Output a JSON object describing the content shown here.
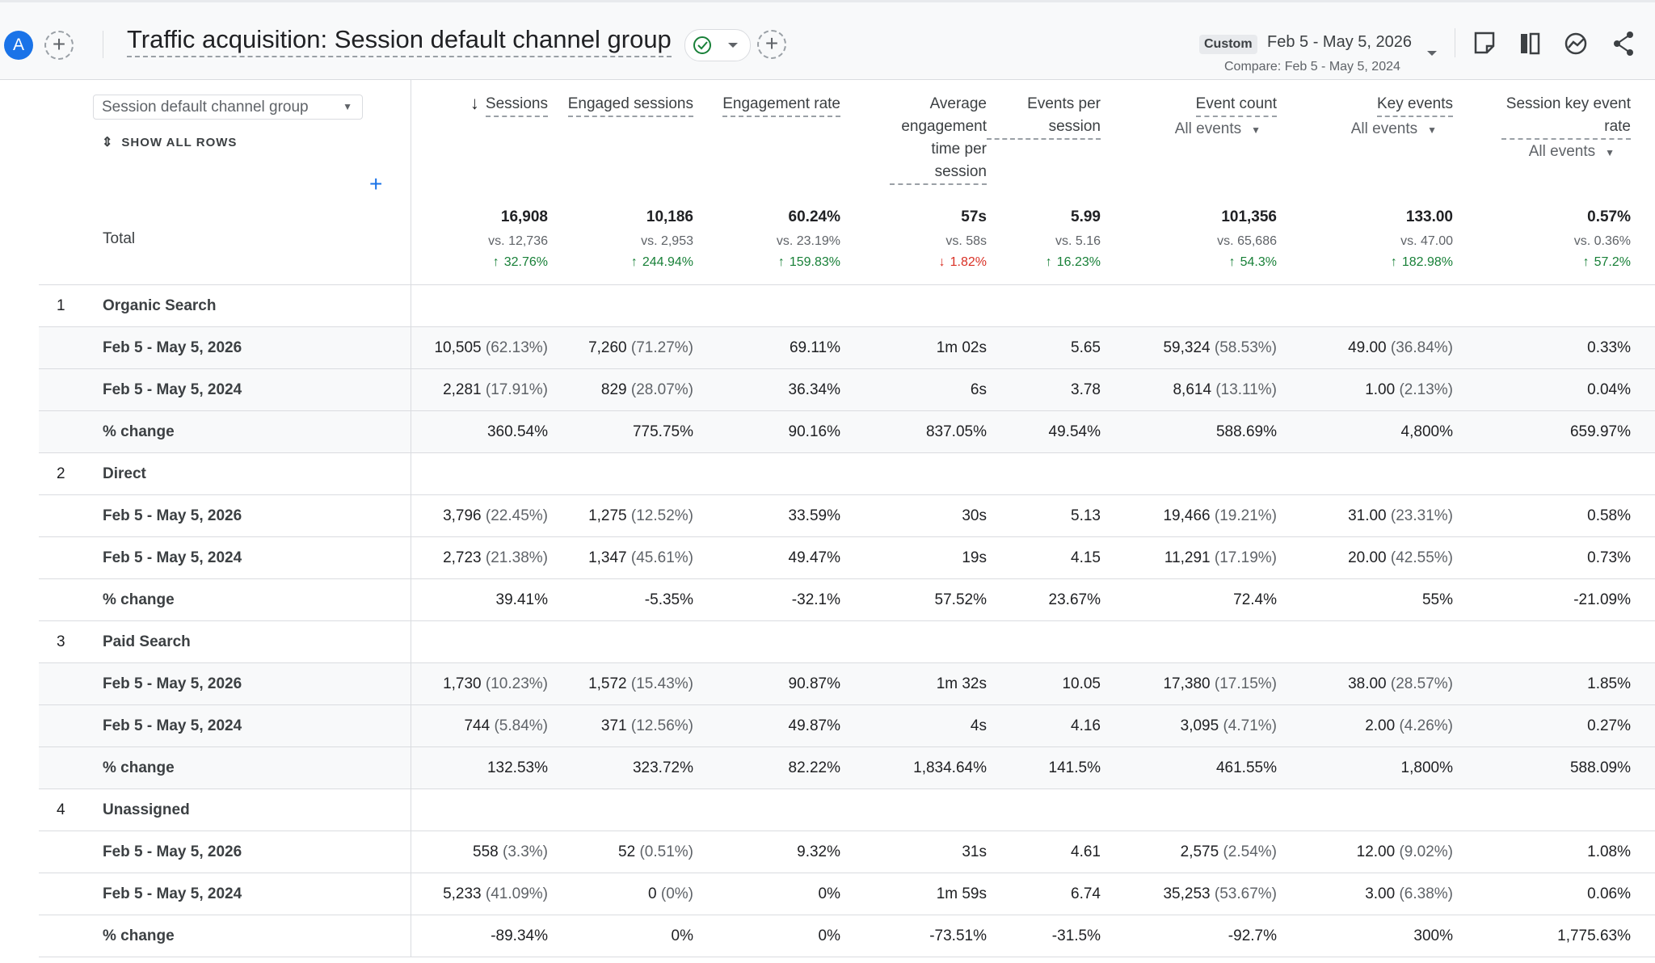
{
  "header": {
    "avatar": "A",
    "title": "Traffic acquisition: Session default channel group",
    "date_badge": "Custom",
    "date_range": "Feb 5 - May 5, 2026",
    "compare": "Compare: Feb 5 - May 5, 2024"
  },
  "dimension": {
    "selector": "Session default channel group",
    "show_all": "SHOW ALL ROWS"
  },
  "columns": [
    {
      "label": "Sessions",
      "sorted": true
    },
    {
      "label": "Engaged sessions"
    },
    {
      "label": "Engagement rate"
    },
    {
      "label": "Average engagement time per session"
    },
    {
      "label": "Events per session"
    },
    {
      "label": "Event count",
      "filter": "All events"
    },
    {
      "label": "Key events",
      "filter": "All events"
    },
    {
      "label": "Session key event rate",
      "filter": "All events"
    }
  ],
  "totals": {
    "label": "Total",
    "cells": [
      {
        "value": "16,908",
        "compare": "vs. 12,736",
        "change": "32.76%",
        "direction": "up"
      },
      {
        "value": "10,186",
        "compare": "vs. 2,953",
        "change": "244.94%",
        "direction": "up"
      },
      {
        "value": "60.24%",
        "compare": "vs. 23.19%",
        "change": "159.83%",
        "direction": "up"
      },
      {
        "value": "57s",
        "compare": "vs. 58s",
        "change": "1.82%",
        "direction": "down"
      },
      {
        "value": "5.99",
        "compare": "vs. 5.16",
        "change": "16.23%",
        "direction": "up"
      },
      {
        "value": "101,356",
        "compare": "vs. 65,686",
        "change": "54.3%",
        "direction": "up"
      },
      {
        "value": "133.00",
        "compare": "vs. 47.00",
        "change": "182.98%",
        "direction": "up"
      },
      {
        "value": "0.57%",
        "compare": "vs. 0.36%",
        "change": "57.2%",
        "direction": "up"
      }
    ]
  },
  "groups": [
    {
      "index": "1",
      "name": "Organic Search",
      "rows": [
        {
          "label": "Feb 5 - May 5, 2026",
          "cells": [
            {
              "value": "10,505",
              "share": "(62.13%)"
            },
            {
              "value": "7,260",
              "share": "(71.27%)"
            },
            "69.11%",
            "1m 02s",
            "5.65",
            {
              "value": "59,324",
              "share": "(58.53%)"
            },
            {
              "value": "49.00",
              "share": "(36.84%)"
            },
            "0.33%"
          ]
        },
        {
          "label": "Feb 5 - May 5, 2024",
          "cells": [
            {
              "value": "2,281",
              "share": "(17.91%)"
            },
            {
              "value": "829",
              "share": "(28.07%)"
            },
            "36.34%",
            "6s",
            "3.78",
            {
              "value": "8,614",
              "share": "(13.11%)"
            },
            {
              "value": "1.00",
              "share": "(2.13%)"
            },
            "0.04%"
          ]
        },
        {
          "label": "% change",
          "cells": [
            "360.54%",
            "775.75%",
            "90.16%",
            "837.05%",
            "49.54%",
            "588.69%",
            "4,800%",
            "659.97%"
          ]
        }
      ]
    },
    {
      "index": "2",
      "name": "Direct",
      "rows": [
        {
          "label": "Feb 5 - May 5, 2026",
          "cells": [
            {
              "value": "3,796",
              "share": "(22.45%)"
            },
            {
              "value": "1,275",
              "share": "(12.52%)"
            },
            "33.59%",
            "30s",
            "5.13",
            {
              "value": "19,466",
              "share": "(19.21%)"
            },
            {
              "value": "31.00",
              "share": "(23.31%)"
            },
            "0.58%"
          ]
        },
        {
          "label": "Feb 5 - May 5, 2024",
          "cells": [
            {
              "value": "2,723",
              "share": "(21.38%)"
            },
            {
              "value": "1,347",
              "share": "(45.61%)"
            },
            "49.47%",
            "19s",
            "4.15",
            {
              "value": "11,291",
              "share": "(17.19%)"
            },
            {
              "value": "20.00",
              "share": "(42.55%)"
            },
            "0.73%"
          ]
        },
        {
          "label": "% change",
          "cells": [
            "39.41%",
            "-5.35%",
            "-32.1%",
            "57.52%",
            "23.67%",
            "72.4%",
            "55%",
            "-21.09%"
          ]
        }
      ]
    },
    {
      "index": "3",
      "name": "Paid Search",
      "rows": [
        {
          "label": "Feb 5 - May 5, 2026",
          "cells": [
            {
              "value": "1,730",
              "share": "(10.23%)"
            },
            {
              "value": "1,572",
              "share": "(15.43%)"
            },
            "90.87%",
            "1m 32s",
            "10.05",
            {
              "value": "17,380",
              "share": "(17.15%)"
            },
            {
              "value": "38.00",
              "share": "(28.57%)"
            },
            "1.85%"
          ]
        },
        {
          "label": "Feb 5 - May 5, 2024",
          "cells": [
            {
              "value": "744",
              "share": "(5.84%)"
            },
            {
              "value": "371",
              "share": "(12.56%)"
            },
            "49.87%",
            "4s",
            "4.16",
            {
              "value": "3,095",
              "share": "(4.71%)"
            },
            {
              "value": "2.00",
              "share": "(4.26%)"
            },
            "0.27%"
          ]
        },
        {
          "label": "% change",
          "cells": [
            "132.53%",
            "323.72%",
            "82.22%",
            "1,834.64%",
            "141.5%",
            "461.55%",
            "1,800%",
            "588.09%"
          ]
        }
      ]
    },
    {
      "index": "4",
      "name": "Unassigned",
      "rows": [
        {
          "label": "Feb 5 - May 5, 2026",
          "cells": [
            {
              "value": "558",
              "share": "(3.3%)"
            },
            {
              "value": "52",
              "share": "(0.51%)"
            },
            "9.32%",
            "31s",
            "4.61",
            {
              "value": "2,575",
              "share": "(2.54%)"
            },
            {
              "value": "12.00",
              "share": "(9.02%)"
            },
            "1.08%"
          ]
        },
        {
          "label": "Feb 5 - May 5, 2024",
          "cells": [
            {
              "value": "5,233",
              "share": "(41.09%)"
            },
            {
              "value": "0",
              "share": "(0%)"
            },
            "0%",
            "1m 59s",
            "6.74",
            {
              "value": "35,253",
              "share": "(53.67%)"
            },
            {
              "value": "3.00",
              "share": "(6.38%)"
            },
            "0.06%"
          ]
        },
        {
          "label": "% change",
          "cells": [
            "-89.34%",
            "0%",
            "0%",
            "-73.51%",
            "-31.5%",
            "-92.7%",
            "300%",
            "1,775.63%"
          ]
        }
      ]
    }
  ]
}
